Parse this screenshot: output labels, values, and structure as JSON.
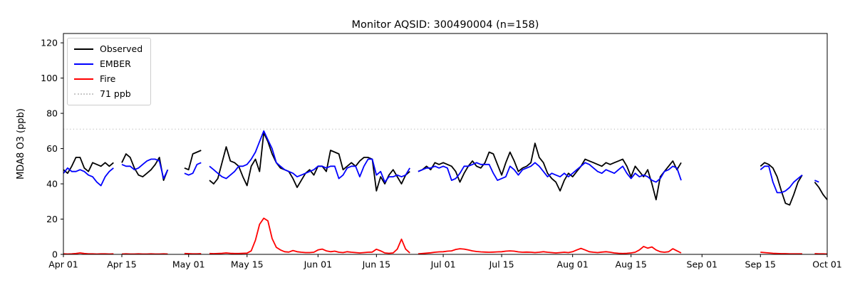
{
  "chart_data": {
    "type": "line",
    "title": "Monitor AQSID: 300490004 (n=158)",
    "ylabel": "MDA8 O3 (ppb)",
    "xlabel": "",
    "n_observations": 158,
    "grid": false,
    "legend_position": "upper left",
    "x_axis": {
      "unit": "day offset from Apr 01",
      "total_days": 183,
      "tick_days": [
        0,
        14,
        30,
        44,
        61,
        75,
        91,
        105,
        122,
        136,
        153,
        167,
        183
      ],
      "tick_labels": [
        "Apr 01",
        "Apr 15",
        "May 01",
        "May 15",
        "Jun 01",
        "Jun 15",
        "Jul 01",
        "Jul 15",
        "Aug 01",
        "Aug 15",
        "Sep 01",
        "Sep 15",
        "Oct 01"
      ]
    },
    "y_axis": {
      "ticks": [
        0,
        20,
        40,
        60,
        80,
        100,
        120
      ],
      "range": [
        0,
        125.3
      ]
    },
    "threshold_line": {
      "value": 71,
      "label": "71 ppb",
      "color": "#c8c8c8",
      "style": "dotted"
    },
    "legend": {
      "entries": [
        {
          "label": "Observed",
          "color": "#000000",
          "style": "solid"
        },
        {
          "label": "EMBER",
          "color": "#0000ff",
          "style": "solid"
        },
        {
          "label": "Fire",
          "color": "#ff0000",
          "style": "solid"
        },
        {
          "label": "71 ppb",
          "color": "#c8c8c8",
          "style": "dotted"
        }
      ]
    },
    "series": [
      {
        "name": "Observed",
        "color": "#000000",
        "values": [
          48,
          46,
          50,
          55,
          55,
          49,
          47,
          52,
          51,
          50,
          52,
          50,
          52,
          null,
          52,
          57,
          55,
          49,
          45,
          44,
          46,
          48,
          51,
          55,
          42,
          48,
          null,
          null,
          null,
          49,
          48,
          57,
          58,
          59,
          null,
          42,
          40,
          43,
          52,
          61,
          53,
          52,
          50,
          44,
          39,
          50,
          54,
          47,
          69,
          64,
          57,
          52,
          49,
          48,
          47,
          43,
          38,
          42,
          46,
          48,
          45,
          50,
          50,
          47,
          59,
          58,
          57,
          48,
          50,
          52,
          50,
          53,
          55,
          55,
          54,
          36,
          44,
          40,
          45,
          48,
          44,
          40,
          45,
          47,
          null,
          47,
          48,
          50,
          48,
          52,
          51,
          52,
          51,
          50,
          47,
          41,
          46,
          50,
          53,
          50,
          49,
          52,
          58,
          57,
          51,
          45,
          52,
          58,
          53,
          47,
          49,
          50,
          52,
          63,
          55,
          52,
          46,
          43,
          41,
          36,
          42,
          46,
          44,
          47,
          50,
          54,
          53,
          52,
          51,
          50,
          52,
          51,
          52,
          53,
          54,
          50,
          44,
          50,
          47,
          44,
          48,
          40,
          31,
          44,
          47,
          50,
          53,
          48,
          52,
          null,
          null,
          null,
          null,
          null,
          null,
          null,
          null,
          null,
          null,
          null,
          null,
          null,
          null,
          null,
          null,
          null,
          null,
          50,
          52,
          51,
          49,
          44,
          36,
          29,
          28,
          34,
          41,
          45,
          null,
          null,
          41,
          38,
          34,
          31
        ]
      },
      {
        "name": "EMBER",
        "color": "#0000ff",
        "values": [
          46,
          49,
          47,
          47,
          48,
          47,
          45,
          44,
          41,
          39,
          44,
          47,
          49,
          null,
          51,
          50,
          50,
          48,
          49,
          51,
          53,
          54,
          54,
          53,
          43,
          48,
          null,
          null,
          null,
          46,
          45,
          46,
          51,
          52,
          null,
          50,
          48,
          46,
          44,
          43,
          45,
          47,
          50,
          50,
          51,
          54,
          58,
          64,
          70,
          65,
          60,
          52,
          50,
          48,
          47,
          46,
          44,
          45,
          46,
          47,
          48,
          50,
          50,
          49,
          50,
          50,
          43,
          45,
          49,
          50,
          50,
          44,
          50,
          54,
          54,
          45,
          47,
          41,
          44,
          44,
          45,
          44,
          45,
          49,
          null,
          47,
          48,
          49,
          49,
          50,
          49,
          50,
          49,
          42,
          43,
          46,
          50,
          50,
          51,
          52,
          51,
          51,
          51,
          46,
          42,
          43,
          44,
          50,
          48,
          45,
          48,
          49,
          50,
          52,
          50,
          47,
          44,
          46,
          45,
          44,
          46,
          44,
          46,
          48,
          50,
          52,
          51,
          49,
          47,
          46,
          48,
          47,
          46,
          48,
          50,
          46,
          43,
          46,
          44,
          45,
          44,
          42,
          41,
          43,
          47,
          48,
          50,
          49,
          42,
          null,
          null,
          null,
          null,
          null,
          null,
          null,
          null,
          null,
          null,
          null,
          null,
          null,
          null,
          null,
          null,
          null,
          null,
          48,
          50,
          50,
          41,
          35,
          35,
          36,
          38,
          41,
          43,
          45,
          null,
          null,
          42,
          41,
          null,
          null
        ]
      },
      {
        "name": "Fire",
        "color": "#ff0000",
        "values": [
          0.3,
          0.2,
          0.3,
          0.5,
          0.8,
          0.5,
          0.3,
          0.3,
          0.2,
          0.3,
          0.3,
          0.2,
          0.3,
          null,
          0.2,
          0.3,
          0.2,
          0.2,
          0.3,
          0.2,
          0.2,
          0.3,
          0.2,
          0.2,
          0.3,
          0.2,
          null,
          null,
          null,
          0.5,
          0.4,
          0.3,
          0.3,
          0.4,
          null,
          0.5,
          0.4,
          0.5,
          0.6,
          0.8,
          0.6,
          0.5,
          0.5,
          0.6,
          0.7,
          2,
          8,
          17,
          20.5,
          19,
          9,
          4,
          2.5,
          1.5,
          1.3,
          2.2,
          1.5,
          1.2,
          1,
          1,
          1.2,
          2.5,
          3,
          2,
          1.5,
          1.8,
          1.2,
          1,
          1.5,
          1.2,
          1,
          0.8,
          1,
          1.2,
          1.3,
          2.9,
          2,
          0.8,
          0.6,
          0.8,
          3,
          8.6,
          3,
          0.8,
          null,
          0.3,
          0.5,
          0.7,
          0.9,
          1.2,
          1.4,
          1.5,
          1.8,
          2,
          2.8,
          3.2,
          3,
          2.5,
          2,
          1.6,
          1.4,
          1.3,
          1.2,
          1.3,
          1.4,
          1.5,
          1.8,
          2,
          1.8,
          1.4,
          1.2,
          1.3,
          1.2,
          1,
          1.2,
          1.5,
          1.2,
          1,
          0.8,
          1,
          1.2,
          1,
          1.5,
          2.5,
          3.4,
          2.5,
          1.5,
          1.2,
          1,
          1.3,
          1.5,
          1.2,
          0.8,
          0.6,
          0.5,
          0.6,
          0.8,
          1.2,
          2.5,
          4.5,
          3.5,
          4.2,
          2.5,
          1.5,
          1.2,
          1.5,
          3.2,
          2,
          0.8,
          null,
          null,
          null,
          null,
          null,
          null,
          null,
          null,
          null,
          null,
          null,
          null,
          null,
          null,
          null,
          null,
          null,
          null,
          1.2,
          1,
          0.8,
          0.6,
          0.5,
          0.4,
          0.4,
          0.3,
          0.3,
          0.3,
          0.3,
          null,
          null,
          0.4,
          0.3,
          0.3,
          0.2
        ]
      }
    ]
  }
}
